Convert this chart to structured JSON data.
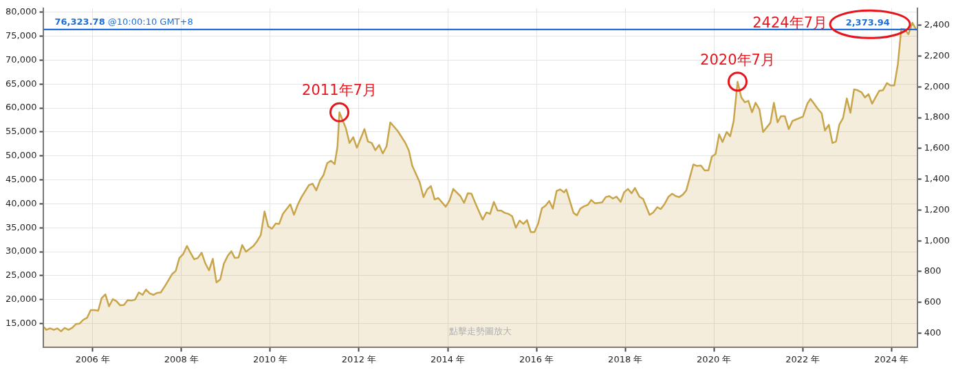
{
  "chart_data": {
    "type": "area",
    "legend": false,
    "grid": true,
    "marker": "none",
    "xlim": [
      "2004-11-23",
      "2024-07-31"
    ],
    "xticks": [
      {
        "value": "2006",
        "label": "2006 年"
      },
      {
        "value": "2008",
        "label": "2008 年"
      },
      {
        "value": "2010",
        "label": "2010 年"
      },
      {
        "value": "2012",
        "label": "2012 年"
      },
      {
        "value": "2014",
        "label": "2014 年"
      },
      {
        "value": "2016",
        "label": "2016 年"
      },
      {
        "value": "2018",
        "label": "2018 年"
      },
      {
        "value": "2020",
        "label": "2020 年"
      },
      {
        "value": "2022",
        "label": "2022 年"
      },
      {
        "value": "2024",
        "label": "2024 年"
      }
    ],
    "ylim": [
      10000,
      80850
    ],
    "yticks": [
      {
        "value": 15000,
        "label": "15,000"
      },
      {
        "value": 20000,
        "label": "20,000"
      },
      {
        "value": 25000,
        "label": "25,000"
      },
      {
        "value": 30000,
        "label": "30,000"
      },
      {
        "value": 35000,
        "label": "35,000"
      },
      {
        "value": 40000,
        "label": "40,000"
      },
      {
        "value": 45000,
        "label": "45,000"
      },
      {
        "value": 50000,
        "label": "50,000"
      },
      {
        "value": 55000,
        "label": "55,000"
      },
      {
        "value": 60000,
        "label": "60,000"
      },
      {
        "value": 65000,
        "label": "65,000"
      },
      {
        "value": 70000,
        "label": "70,000"
      },
      {
        "value": 75000,
        "label": "75,000"
      },
      {
        "value": 80000,
        "label": "80,000"
      }
    ],
    "y2lim": [
      307,
      2511
    ],
    "y2ticks": [
      400,
      600,
      800,
      {
        "value": 1000,
        "label": "1,000"
      },
      {
        "value": 1200,
        "label": "1,200"
      },
      {
        "value": 1400,
        "label": "1,400"
      },
      {
        "value": 1600,
        "label": "1,600"
      },
      {
        "value": 1800,
        "label": "1,800"
      },
      {
        "value": 2000,
        "label": "2,000"
      },
      {
        "value": 2200,
        "label": "2,200"
      },
      {
        "value": 2400,
        "label": "2,400"
      }
    ],
    "ref_lines": [
      {
        "axis": "y",
        "value": 76323.78,
        "label": "76,323.78 @10:00:10 GMT+8",
        "color": "#1a6fdc"
      },
      {
        "axis": "y2",
        "value": 2373.94,
        "label": "2,373.94",
        "color": "#1a6fdc"
      }
    ],
    "annotations": [
      {
        "text": "2011年7月",
        "x": "2011-07-24",
        "y": 59100
      },
      {
        "text": "2020年7月",
        "x": "2020-07-13",
        "y": 65500
      },
      {
        "text": "2424年7月",
        "x": "2023-07-08",
        "y": 76323.78
      },
      "點擊走勢圖放大"
    ],
    "series": [
      {
        "color": "#c8a54a",
        "x": [
          "2004-11-25",
          "2004-12",
          "2005-01",
          "2005-02",
          "2005-03",
          "2005-04",
          "2005-05",
          "2005-06",
          "2005-07",
          "2005-08",
          "2005-09",
          "2005-10",
          "2005-11",
          "2005-12",
          "2006-01",
          "2006-02",
          "2006-03",
          "2006-04",
          "2006-05",
          "2006-06",
          "2006-07",
          "2006-08",
          "2006-09",
          "2006-10",
          "2006-11",
          "2006-12",
          "2007-01",
          "2007-02",
          "2007-03",
          "2007-04",
          "2007-05",
          "2007-06",
          "2007-07",
          "2007-08",
          "2007-09",
          "2007-10",
          "2007-11",
          "2007-12",
          "2008-01",
          "2008-02",
          "2008-03",
          "2008-04",
          "2008-05",
          "2008-06",
          "2008-07",
          "2008-08",
          "2008-09",
          "2008-10",
          "2008-11",
          "2008-12",
          "2009-01",
          "2009-02",
          "2009-03",
          "2009-04",
          "2009-05",
          "2009-06",
          "2009-08",
          "2009-09",
          "2009-10",
          "2009-11",
          "2009-12",
          "2010-01",
          "2010-02",
          "2010-03",
          "2010-04",
          "2010-06",
          "2010-07",
          "2010-08",
          "2010-09",
          "2010-11",
          "2010-12",
          "2011-01",
          "2011-02",
          "2011-03",
          "2011-04",
          "2011-05",
          "2011-06",
          "2011-07-08",
          "2011-07-24",
          "2011-09",
          "2011-10",
          "2011-11",
          "2011-12",
          "2012-02",
          "2012-03",
          "2012-04",
          "2012-05",
          "2012-06",
          "2012-07",
          "2012-08",
          "2012-09",
          "2012-11",
          "2013-01",
          "2013-02",
          "2013-03",
          "2013-05",
          "2013-06",
          "2013-07",
          "2013-08",
          "2013-09",
          "2013-10",
          "2013-11",
          "2013-12",
          "2014-01",
          "2014-02",
          "2014-04",
          "2014-05",
          "2014-06",
          "2014-07",
          "2014-08",
          "2014-10",
          "2014-11",
          "2014-12",
          "2015-01",
          "2015-02",
          "2015-03",
          "2015-04",
          "2015-05",
          "2015-06",
          "2015-07",
          "2015-08",
          "2015-09",
          "2015-10",
          "2015-11",
          "2015-12",
          "2016-01",
          "2016-02",
          "2016-03",
          "2016-04",
          "2016-05",
          "2016-06",
          "2016-07",
          "2016-08",
          "2016-09-02",
          "2016-11-01",
          "2016-11-29",
          "2016-12-27",
          "2017-01-28",
          "2017-02-27",
          "2017-03-27",
          "2017-04-26",
          "2017-06-24",
          "2017-07-24",
          "2017-08-23",
          "2017-09-21",
          "2017-10-21",
          "2017-11-24",
          "2017-12-22",
          "2018-01-23",
          "2018-02-22",
          "2018-03-21",
          "2018-04-27",
          "2018-05-28",
          "2018-07-20",
          "2018-08-19",
          "2018-09-21",
          "2018-10-20",
          "2018-11-21",
          "2018-12-23",
          "2019-01-22",
          "2019-02-21",
          "2019-03-20",
          "2019-04-19",
          "2019-05-18",
          "2019-07-15",
          "2019-08-14",
          "2019-09-16",
          "2019-10-15",
          "2019-11-16",
          "2019-12-15",
          "2020-01-14",
          "2020-02-12",
          "2020-03-11",
          "2020-04-14",
          "2020-05-13",
          "2020-06-11",
          "2020-07-13",
          "2020-08-13",
          "2020-09-11",
          "2020-10-10",
          "2020-11-09",
          "2020-12-08",
          "2021-01-09",
          "2021-02-08",
          "2021-04-09",
          "2021-05-08",
          "2021-06-07",
          "2021-07-05",
          "2021-08-06",
          "2021-09-07",
          "2021-10-08",
          "2021-11-06",
          "2022-01-02",
          "2022-02-07",
          "2022-03-05",
          "2022-04-04",
          "2022-05-05",
          "2022-06-05",
          "2022-07-02",
          "2022-08-03",
          "2022-09-02",
          "2022-10-01",
          "2022-10-28",
          "2022-11-28",
          "2022-12-29",
          "2023-01-28",
          "2023-02-27",
          "2023-03-29",
          "2023-04-28",
          "2023-05-27",
          "2023-06-26",
          "2023-07-25",
          "2023-08-24",
          "2023-09-23",
          "2023-10-22",
          "2023-11-24",
          "2023-12-23",
          "2024-01-24",
          "2024-02-22",
          "2024-03-21",
          "2024-04-20",
          "2024-05-19",
          "2024-06-21",
          "2024-07-25"
        ],
        "values": [
          14300,
          13700,
          14000,
          13700,
          14000,
          13400,
          14100,
          13700,
          14100,
          14900,
          15000,
          15800,
          16200,
          17800,
          17800,
          17700,
          20300,
          21100,
          18600,
          20100,
          19700,
          18800,
          18900,
          19900,
          19800,
          20000,
          21500,
          21000,
          22100,
          21300,
          21000,
          21400,
          21500,
          22700,
          24000,
          25300,
          26000,
          28700,
          29500,
          31200,
          29800,
          28400,
          28700,
          29800,
          27600,
          26100,
          28500,
          23600,
          24200,
          27500,
          29100,
          30100,
          28700,
          28800,
          31400,
          30000,
          31200,
          32200,
          33500,
          38400,
          35300,
          34800,
          35900,
          35800,
          37900,
          39900,
          37700,
          39800,
          41400,
          43900,
          44200,
          42800,
          44900,
          46000,
          48500,
          49000,
          48300,
          51900,
          59100,
          55800,
          52700,
          53900,
          51700,
          55600,
          53000,
          52700,
          51200,
          52300,
          50500,
          52000,
          57000,
          55200,
          52800,
          51100,
          47900,
          44500,
          41400,
          43000,
          43700,
          40900,
          41200,
          40300,
          39400,
          40700,
          43100,
          41600,
          40200,
          42200,
          42100,
          40200,
          36700,
          38200,
          37900,
          40400,
          38600,
          38600,
          38100,
          37900,
          37400,
          35000,
          36500,
          35800,
          36600,
          34100,
          34100,
          35900,
          39100,
          39600,
          40600,
          39000,
          42700,
          43000,
          42400,
          43000,
          38100,
          37600,
          39000,
          39500,
          39800,
          40800,
          40100,
          40300,
          41400,
          41600,
          41100,
          41500,
          40400,
          42400,
          43100,
          42200,
          43300,
          41500,
          41000,
          37700,
          38200,
          39300,
          38900,
          40000,
          41500,
          42100,
          41600,
          41400,
          41900,
          42800,
          48200,
          47900,
          48000,
          47000,
          47000,
          49900,
          50400,
          54500,
          52900,
          55000,
          54100,
          57300,
          65500,
          62200,
          61200,
          61500,
          59100,
          61100,
          59700,
          55000,
          56900,
          61100,
          57000,
          58300,
          58300,
          55600,
          57300,
          57600,
          58200,
          60900,
          61900,
          60900,
          59800,
          58900,
          55300,
          56500,
          52700,
          53000,
          56500,
          57900,
          62000,
          59000,
          63900,
          63700,
          63300,
          62200,
          62900,
          60900,
          62300,
          63600,
          63700,
          65200,
          64700,
          64700,
          69100,
          76500,
          76400,
          75400,
          77800,
          76200
        ]
      }
    ]
  }
}
